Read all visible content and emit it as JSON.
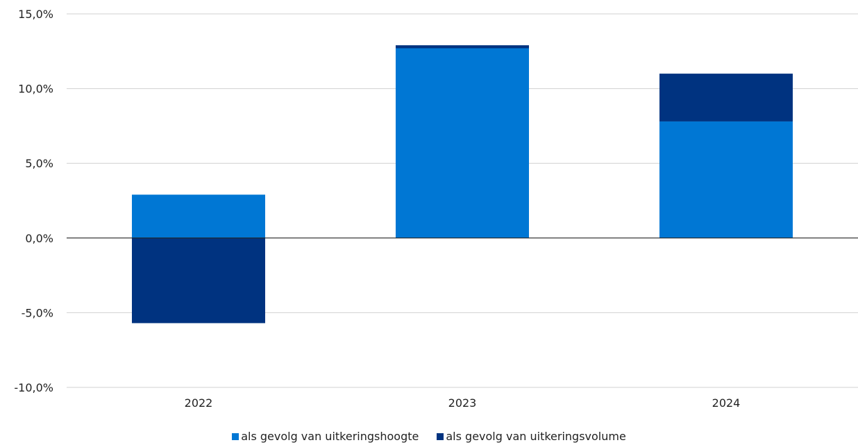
{
  "chart_data": {
    "type": "bar",
    "stacked": true,
    "title": "",
    "xlabel": "",
    "ylabel": "",
    "categories": [
      "2022",
      "2023",
      "2024"
    ],
    "series": [
      {
        "name": "als gevolg van uitkeringshoogte",
        "color": "#0077d4",
        "values": [
          2.9,
          12.7,
          7.8
        ]
      },
      {
        "name": "als gevolg van uitkeringsvolume",
        "color": "#003380",
        "values": [
          -5.7,
          0.2,
          3.2
        ]
      }
    ],
    "ylim": [
      -10,
      15
    ],
    "yticks": [
      -10,
      -5,
      0,
      5,
      10,
      15
    ],
    "ytick_labels": [
      "-10,0%",
      "-5,0%",
      "0,0%",
      "5,0%",
      "10,0%",
      "15,0%"
    ],
    "grid": true,
    "legend_position": "bottom"
  }
}
